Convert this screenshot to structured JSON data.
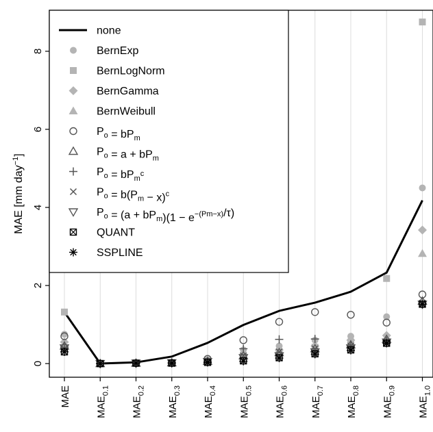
{
  "chart_data": {
    "type": "line",
    "ylabel": "MAE [mm day",
    "ylabel_sup": "−1",
    "ylabel_tail": "]",
    "ylim": [
      -0.35,
      9.05
    ],
    "yticks": [
      0,
      2,
      4,
      6,
      8
    ],
    "grid": "vertical",
    "legend_position": "top-left",
    "x_ticks": [
      {
        "base": "MAE",
        "sub": ""
      },
      {
        "base": "MAE",
        "sub": "0.1"
      },
      {
        "base": "MAE",
        "sub": "0.2"
      },
      {
        "base": "MAE",
        "sub": "0.3"
      },
      {
        "base": "MAE",
        "sub": "0.4"
      },
      {
        "base": "MAE",
        "sub": "0.5"
      },
      {
        "base": "MAE",
        "sub": "0.6"
      },
      {
        "base": "MAE",
        "sub": "0.7"
      },
      {
        "base": "MAE",
        "sub": "0.8"
      },
      {
        "base": "MAE",
        "sub": "0.9"
      },
      {
        "base": "MAE",
        "sub": "1.0"
      }
    ],
    "series": [
      {
        "name": "none",
        "marker": "line",
        "color": "#000000",
        "values": [
          1.32,
          0.0,
          0.03,
          0.18,
          0.53,
          0.99,
          1.35,
          1.56,
          1.84,
          2.33,
          4.18
        ]
      },
      {
        "name": "BernExp",
        "marker": "circle-filled",
        "color": "#b4b4b4",
        "values": [
          0.75,
          0.0,
          0.01,
          0.02,
          0.1,
          0.35,
          0.45,
          0.6,
          0.7,
          1.2,
          4.5
        ]
      },
      {
        "name": "BernLogNorm",
        "marker": "square-filled",
        "color": "#b4b4b4",
        "values": [
          1.32,
          0.0,
          0.01,
          0.02,
          0.08,
          0.2,
          0.3,
          0.42,
          0.55,
          2.18,
          8.75
        ]
      },
      {
        "name": "BernGamma",
        "marker": "diamond-filled",
        "color": "#b4b4b4",
        "values": [
          0.55,
          0.0,
          0.01,
          0.02,
          0.08,
          0.22,
          0.35,
          0.45,
          0.6,
          0.72,
          3.42
        ]
      },
      {
        "name": "BernWeibull",
        "marker": "triangle-filled",
        "color": "#b4b4b4",
        "values": [
          0.5,
          0.0,
          0.01,
          0.02,
          0.07,
          0.2,
          0.32,
          0.42,
          0.55,
          0.68,
          2.82
        ]
      },
      {
        "name": "P_o = bP_m",
        "marker": "circle-open",
        "color": "#555555",
        "values": [
          0.7,
          0.0,
          0.01,
          0.02,
          0.12,
          0.6,
          1.07,
          1.32,
          1.25,
          1.05,
          1.77
        ]
      },
      {
        "name": "P_o = a + bP_m",
        "marker": "triangle-open",
        "color": "#555555",
        "values": [
          0.45,
          0.0,
          0.01,
          0.02,
          0.06,
          0.2,
          0.28,
          0.38,
          0.48,
          0.62,
          1.6
        ]
      },
      {
        "name": "P_o = bP_m^c",
        "marker": "plus",
        "color": "#555555",
        "values": [
          0.42,
          0.0,
          0.01,
          0.02,
          0.05,
          0.38,
          0.62,
          0.63,
          0.45,
          0.58,
          1.58
        ]
      },
      {
        "name": "P_o = b(P_m − x)^c",
        "marker": "cross",
        "color": "#555555",
        "values": [
          0.38,
          0.0,
          0.01,
          0.02,
          0.05,
          0.2,
          0.3,
          0.38,
          0.45,
          0.55,
          1.55
        ]
      },
      {
        "name": "P_o = (a + bP_m)(1 − e^(−(P_m−x)/τ))",
        "marker": "triangle-down-open",
        "color": "#555555",
        "values": [
          0.4,
          0.0,
          0.01,
          0.02,
          0.05,
          0.15,
          0.2,
          0.3,
          0.4,
          0.55,
          1.52
        ]
      },
      {
        "name": "QUANT",
        "marker": "boxed-x",
        "color": "#000000",
        "values": [
          0.3,
          0.0,
          0.01,
          0.01,
          0.03,
          0.07,
          0.15,
          0.25,
          0.35,
          0.52,
          1.52
        ]
      },
      {
        "name": "SSPLINE",
        "marker": "asterisk",
        "color": "#000000",
        "values": [
          0.3,
          0.0,
          0.01,
          0.01,
          0.03,
          0.06,
          0.14,
          0.24,
          0.34,
          0.52,
          1.52
        ]
      }
    ]
  }
}
